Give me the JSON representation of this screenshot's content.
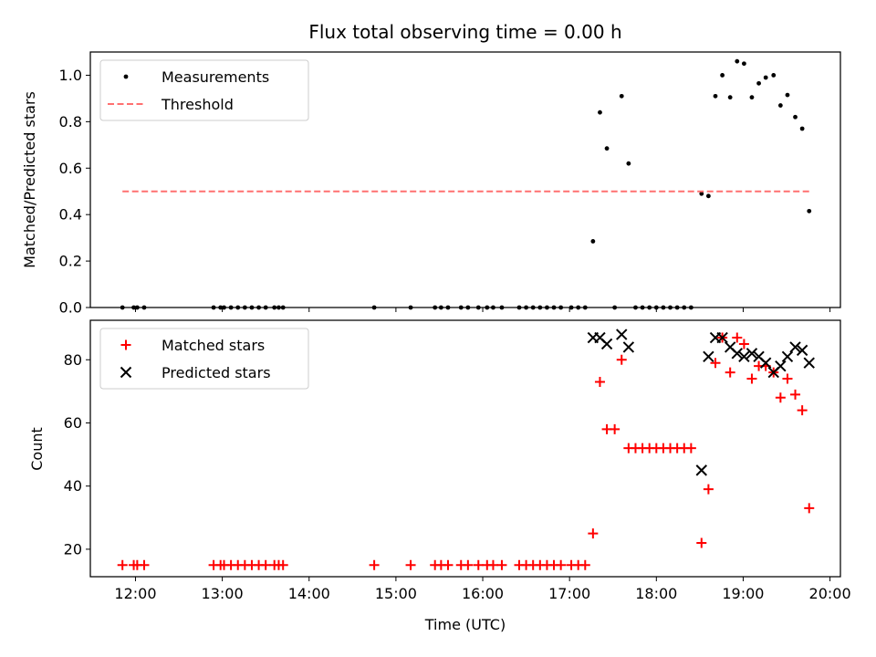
{
  "chart_data": [
    {
      "type": "scatter",
      "title": "Flux total observing time = 0.00 h",
      "xlabel": "",
      "ylabel": "Matched/Predicted stars",
      "xlim": [
        11.48,
        20.12
      ],
      "ylim": [
        0.0,
        1.1
      ],
      "yticks": [
        "0.0",
        "0.2",
        "0.4",
        "0.6",
        "0.8",
        "1.0"
      ],
      "ytick_values": [
        0.0,
        0.2,
        0.4,
        0.6,
        0.8,
        1.0
      ],
      "legend": {
        "location": "upper-left",
        "entries": [
          "Measurements",
          "Threshold"
        ]
      },
      "series": [
        {
          "name": "Measurements",
          "marker": "dot",
          "color": "#000000",
          "x": [
            11.85,
            11.98,
            12.02,
            12.1,
            12.9,
            12.98,
            13.02,
            13.1,
            13.18,
            13.26,
            13.34,
            13.42,
            13.5,
            13.6,
            13.65,
            13.7,
            14.75,
            15.17,
            15.45,
            15.52,
            15.6,
            15.75,
            15.83,
            15.95,
            16.05,
            16.12,
            16.22,
            16.42,
            16.5,
            16.58,
            16.66,
            16.74,
            16.82,
            16.9,
            17.02,
            17.1,
            17.18,
            17.27,
            17.35,
            17.43,
            17.52,
            17.6,
            17.68,
            17.76,
            17.84,
            17.92,
            18.0,
            18.08,
            18.16,
            18.24,
            18.32,
            18.4,
            18.52,
            18.6,
            18.68,
            18.76,
            18.85,
            18.93,
            19.01,
            19.1,
            19.18,
            19.26,
            19.35,
            19.43,
            19.51,
            19.6,
            19.68,
            19.76
          ],
          "y": [
            0,
            0,
            0,
            0,
            0,
            0,
            0,
            0,
            0,
            0,
            0,
            0,
            0,
            0,
            0,
            0,
            0,
            0,
            0,
            0,
            0,
            0,
            0,
            0,
            0,
            0,
            0,
            0,
            0,
            0,
            0,
            0,
            0,
            0,
            0,
            0,
            0,
            0.285,
            0.84,
            0.685,
            0.0,
            0.91,
            0.62,
            0,
            0,
            0,
            0,
            0,
            0,
            0,
            0,
            0,
            0.49,
            0.48,
            0.91,
            1.0,
            0.905,
            1.06,
            1.05,
            0.905,
            0.965,
            0.99,
            1.0,
            0.87,
            0.915,
            0.82,
            0.77,
            0.415
          ]
        },
        {
          "name": "Threshold",
          "style": "dashed-line",
          "color": "#ff7070",
          "x": [
            11.85,
            19.76
          ],
          "y": [
            0.5,
            0.5
          ]
        }
      ]
    },
    {
      "type": "scatter",
      "title": "",
      "xlabel": "Time (UTC)",
      "ylabel": "Count",
      "xlim": [
        11.48,
        20.12
      ],
      "ylim": [
        11.3,
        92.5
      ],
      "xticks": [
        "12:00",
        "13:00",
        "14:00",
        "15:00",
        "16:00",
        "17:00",
        "18:00",
        "19:00",
        "20:00"
      ],
      "xtick_values": [
        12,
        13,
        14,
        15,
        16,
        17,
        18,
        19,
        20
      ],
      "yticks": [
        "20",
        "40",
        "60",
        "80"
      ],
      "ytick_values": [
        20,
        40,
        60,
        80
      ],
      "legend": {
        "location": "upper-left",
        "entries": [
          "Matched stars",
          "Predicted stars"
        ]
      },
      "series": [
        {
          "name": "Matched stars",
          "marker": "plus",
          "color": "#ff0000",
          "x": [
            11.85,
            11.98,
            12.02,
            12.1,
            12.9,
            12.98,
            13.02,
            13.1,
            13.18,
            13.26,
            13.34,
            13.42,
            13.5,
            13.6,
            13.65,
            13.7,
            14.75,
            15.17,
            15.45,
            15.52,
            15.6,
            15.75,
            15.83,
            15.95,
            16.05,
            16.12,
            16.22,
            16.42,
            16.5,
            16.58,
            16.66,
            16.74,
            16.82,
            16.9,
            17.02,
            17.1,
            17.18,
            17.27,
            17.35,
            17.43,
            17.52,
            17.6,
            17.68,
            17.76,
            17.84,
            17.92,
            18.0,
            18.08,
            18.16,
            18.24,
            18.32,
            18.4,
            18.52,
            18.6,
            18.68,
            18.76,
            18.85,
            18.93,
            19.01,
            19.1,
            19.18,
            19.26,
            19.35,
            19.43,
            19.51,
            19.6,
            19.68,
            19.76
          ],
          "y": [
            15,
            15,
            15,
            15,
            15,
            15,
            15,
            15,
            15,
            15,
            15,
            15,
            15,
            15,
            15,
            15,
            15,
            15,
            15,
            15,
            15,
            15,
            15,
            15,
            15,
            15,
            15,
            15,
            15,
            15,
            15,
            15,
            15,
            15,
            15,
            15,
            15,
            25,
            73,
            58,
            58,
            80,
            52,
            52,
            52,
            52,
            52,
            52,
            52,
            52,
            52,
            52,
            22,
            39,
            79,
            87,
            76,
            87,
            85,
            74,
            78,
            78,
            76,
            68,
            74,
            69,
            64,
            33
          ]
        },
        {
          "name": "Predicted stars",
          "marker": "x",
          "color": "#000000",
          "x": [
            17.27,
            17.35,
            17.43,
            17.6,
            17.68,
            18.52,
            18.6,
            18.68,
            18.76,
            18.85,
            18.93,
            19.01,
            19.1,
            19.18,
            19.26,
            19.35,
            19.43,
            19.51,
            19.6,
            19.68,
            19.76
          ],
          "y": [
            87,
            87,
            85,
            88,
            84,
            45,
            81,
            87,
            87,
            84,
            82,
            81,
            82,
            81,
            79,
            76,
            78,
            81,
            84,
            83,
            79
          ]
        }
      ]
    }
  ]
}
